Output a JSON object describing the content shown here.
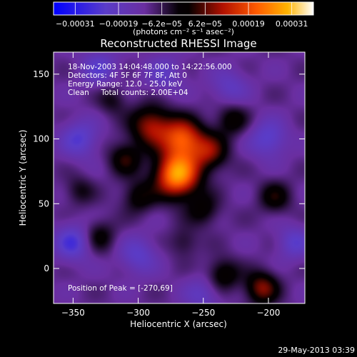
{
  "chart_data": {
    "type": "heatmap",
    "title": "Reconstructed RHESSI Image",
    "xlabel": "Heliocentric X (arcsec)",
    "ylabel": "Heliocentric Y (arcsec)",
    "xlim": [
      -365,
      -172
    ],
    "ylim": [
      -27,
      167
    ],
    "xticks": [
      -350,
      -300,
      -250,
      -200
    ],
    "yticks": [
      0,
      50,
      100,
      150
    ],
    "colormap": "RHESSI red-temperature (blue to purple to black to red to orange to white)",
    "colorbar": {
      "range": [
        -0.00031,
        0.00031
      ],
      "tick_labels": [
        "-0.00031",
        "-0.00019",
        "-6.2e-05",
        "6.2e-05",
        "0.00019",
        "0.00031"
      ],
      "unit_label": "(photons cm⁻² s⁻¹ asec⁻²)"
    },
    "annotations": [
      "18-Nov-2003 14:04:48.000 to 14:22:56.000",
      "Detectors: 4F 5F 6F 7F 8F, Att 0",
      "Energy Range: 12.0 - 25.0 keV",
      "Clean     Total counts: 2.00E+04"
    ],
    "peak_label": "Position of Peak = [-270,69]",
    "peak": {
      "x": -270,
      "y": 69
    },
    "sources": [
      {
        "x": -270,
        "y": 72,
        "amplitude": 1.0,
        "sigma": 12
      },
      {
        "x": -266,
        "y": 100,
        "amplitude": 0.75,
        "sigma": 11
      },
      {
        "x": -290,
        "y": 110,
        "amplitude": 0.55,
        "sigma": 11
      },
      {
        "x": -245,
        "y": 90,
        "amplitude": 0.45,
        "sigma": 10
      },
      {
        "x": -310,
        "y": 85,
        "amplitude": 0.35,
        "sigma": 9
      },
      {
        "x": -228,
        "y": 115,
        "amplitude": 0.3,
        "sigma": 9
      },
      {
        "x": -300,
        "y": 55,
        "amplitude": 0.3,
        "sigma": 9
      },
      {
        "x": -250,
        "y": 45,
        "amplitude": 0.28,
        "sigma": 9
      },
      {
        "x": -330,
        "y": 25,
        "amplitude": 0.28,
        "sigma": 9
      },
      {
        "x": -205,
        "y": -15,
        "amplitude": 0.5,
        "sigma": 9
      },
      {
        "x": -235,
        "y": -5,
        "amplitude": 0.35,
        "sigma": 9
      },
      {
        "x": -195,
        "y": 55,
        "amplitude": 0.3,
        "sigma": 9
      },
      {
        "x": -345,
        "y": 60,
        "amplitude": 0.22,
        "sigma": 8
      },
      {
        "x": -320,
        "y": 130,
        "amplitude": 0.22,
        "sigma": 8
      },
      {
        "x": -265,
        "y": 20,
        "amplitude": 0.2,
        "sigma": 8
      },
      {
        "x": -230,
        "y": 140,
        "amplitude": -0.25,
        "sigma": 10
      },
      {
        "x": -345,
        "y": 100,
        "amplitude": -0.35,
        "sigma": 10
      },
      {
        "x": -350,
        "y": 20,
        "amplitude": -0.4,
        "sigma": 10
      },
      {
        "x": -200,
        "y": 100,
        "amplitude": -0.35,
        "sigma": 10
      },
      {
        "x": -300,
        "y": 10,
        "amplitude": -0.3,
        "sigma": 10
      },
      {
        "x": -250,
        "y": -20,
        "amplitude": -0.25,
        "sigma": 10
      },
      {
        "x": -180,
        "y": 20,
        "amplitude": -0.3,
        "sigma": 9
      },
      {
        "x": -330,
        "y": 155,
        "amplitude": -0.3,
        "sigma": 10
      },
      {
        "x": -280,
        "y": 150,
        "amplitude": -0.25,
        "sigma": 10
      }
    ]
  },
  "footer": {
    "date": "29-May-2013 03:39"
  }
}
